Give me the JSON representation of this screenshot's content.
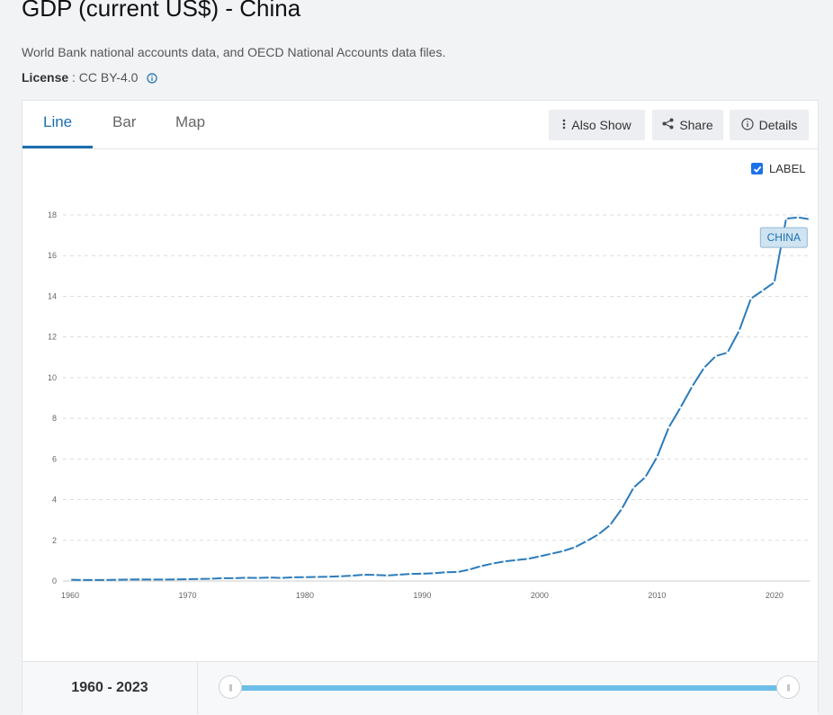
{
  "page": {
    "title": "GDP (current US$) - China",
    "source": "World Bank national accounts data, and OECD National Accounts data files.",
    "license_label": "License",
    "license_value": " : CC BY-4.0"
  },
  "tabs": [
    {
      "label": "Line",
      "active": true
    },
    {
      "label": "Bar",
      "active": false
    },
    {
      "label": "Map",
      "active": false
    }
  ],
  "toolbar": {
    "also_show": "Also Show",
    "share": "Share",
    "details": "Details"
  },
  "label_toggle": {
    "label": "LABEL",
    "checked": true
  },
  "range": {
    "text": "1960 - 2023"
  },
  "colors": {
    "accent": "#1b6fb1",
    "line": "#2b7bba",
    "grid": "#dddddd",
    "slider": "#6cbde8"
  },
  "chart_data": {
    "type": "line",
    "title": "GDP (current US$) - China",
    "xlabel": "",
    "ylabel": "",
    "xlim": [
      1960,
      2023
    ],
    "ylim": [
      0,
      18
    ],
    "x_ticks": [
      1960,
      1970,
      1980,
      1990,
      2000,
      2010,
      2020
    ],
    "y_ticks": [
      0,
      2,
      4,
      6,
      8,
      10,
      12,
      14,
      16,
      18
    ],
    "grid": true,
    "series": [
      {
        "name": "CHINA",
        "x": [
          1960,
          1961,
          1962,
          1963,
          1964,
          1965,
          1966,
          1967,
          1968,
          1969,
          1970,
          1971,
          1972,
          1973,
          1974,
          1975,
          1976,
          1977,
          1978,
          1979,
          1980,
          1981,
          1982,
          1983,
          1984,
          1985,
          1986,
          1987,
          1988,
          1989,
          1990,
          1991,
          1992,
          1993,
          1994,
          1995,
          1996,
          1997,
          1998,
          1999,
          2000,
          2001,
          2002,
          2003,
          2004,
          2005,
          2006,
          2007,
          2008,
          2009,
          2010,
          2011,
          2012,
          2013,
          2014,
          2015,
          2016,
          2017,
          2018,
          2019,
          2020,
          2021,
          2022,
          2023
        ],
        "values": [
          0.06,
          0.05,
          0.05,
          0.05,
          0.06,
          0.07,
          0.08,
          0.07,
          0.07,
          0.08,
          0.09,
          0.1,
          0.11,
          0.14,
          0.14,
          0.16,
          0.15,
          0.17,
          0.15,
          0.18,
          0.19,
          0.2,
          0.21,
          0.23,
          0.26,
          0.31,
          0.3,
          0.27,
          0.31,
          0.35,
          0.36,
          0.38,
          0.43,
          0.44,
          0.56,
          0.73,
          0.86,
          0.96,
          1.03,
          1.09,
          1.21,
          1.34,
          1.47,
          1.66,
          1.96,
          2.29,
          2.75,
          3.55,
          4.59,
          5.1,
          6.09,
          7.55,
          8.53,
          9.57,
          10.48,
          11.06,
          11.23,
          12.31,
          13.89,
          14.28,
          14.69,
          17.82,
          17.88,
          17.79
        ]
      }
    ],
    "annotations": [
      {
        "text": "CHINA"
      }
    ]
  }
}
